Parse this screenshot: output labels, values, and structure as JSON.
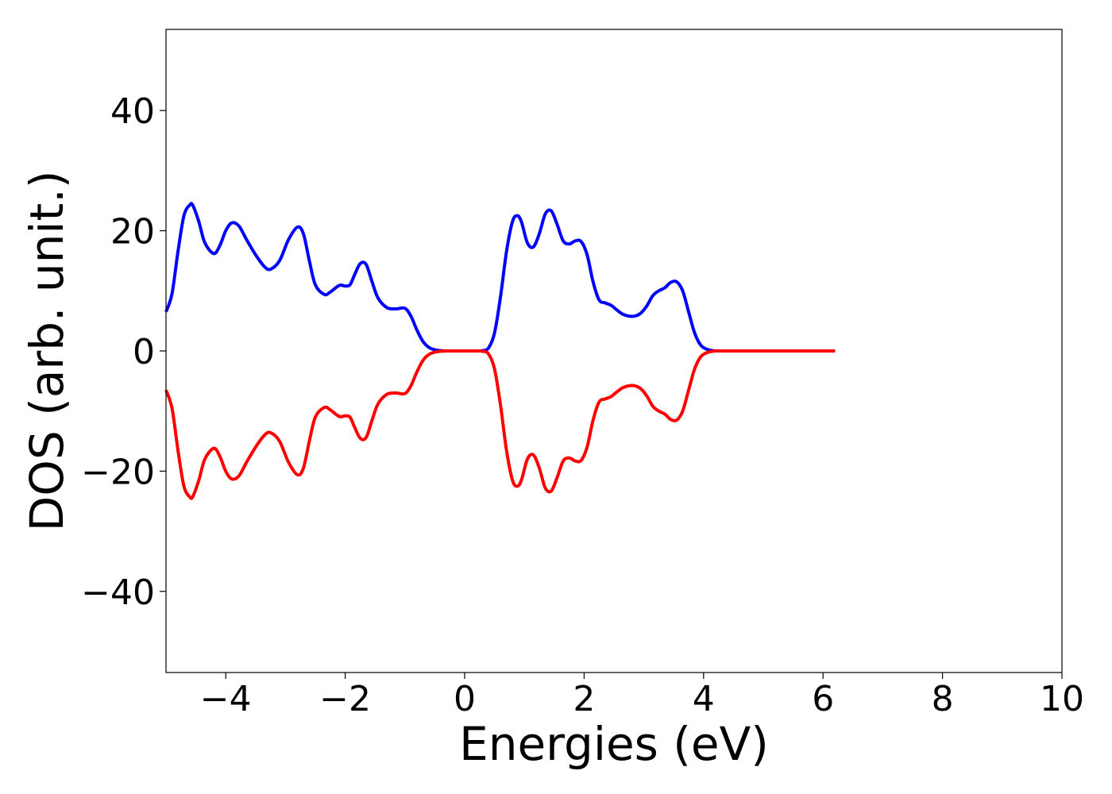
{
  "chart_data": {
    "type": "line",
    "title": "",
    "xlabel": "Energies (eV)",
    "ylabel": "DOS (arb. unit.)",
    "xlim": [
      -5,
      10
    ],
    "ylim": [
      -53.5,
      53.5
    ],
    "xticks": [
      -4,
      -2,
      0,
      2,
      4,
      6,
      8,
      10
    ],
    "yticks": [
      -40,
      -20,
      0,
      20,
      40
    ],
    "xtick_labels": [
      "−4",
      "−2",
      "0",
      "2",
      "4",
      "6",
      "8",
      "10"
    ],
    "ytick_labels": [
      "−40",
      "−20",
      "0",
      "20",
      "40"
    ],
    "grid": false,
    "legend": "none",
    "series": [
      {
        "color": "#0000ff",
        "x": [
          -5.0,
          -4.9,
          -4.8,
          -4.7,
          -4.6,
          -4.55,
          -4.45,
          -4.35,
          -4.2,
          -4.1,
          -4.0,
          -3.9,
          -3.78,
          -3.65,
          -3.5,
          -3.35,
          -3.25,
          -3.1,
          -2.95,
          -2.8,
          -2.7,
          -2.6,
          -2.5,
          -2.35,
          -2.25,
          -2.1,
          -2.0,
          -1.92,
          -1.85,
          -1.75,
          -1.65,
          -1.55,
          -1.45,
          -1.3,
          -1.15,
          -1.0,
          -0.9,
          -0.8,
          -0.7,
          -0.6,
          -0.5,
          -0.4,
          -0.3,
          -0.2,
          0.0,
          0.2,
          0.3,
          0.4,
          0.5,
          0.6,
          0.7,
          0.8,
          0.88,
          0.95,
          1.05,
          1.15,
          1.25,
          1.35,
          1.45,
          1.55,
          1.65,
          1.75,
          1.85,
          1.95,
          2.05,
          2.15,
          2.25,
          2.35,
          2.45,
          2.55,
          2.65,
          2.75,
          2.85,
          2.95,
          3.05,
          3.15,
          3.25,
          3.35,
          3.45,
          3.55,
          3.65,
          3.75,
          3.85,
          3.95,
          4.05,
          4.15,
          4.25,
          4.5,
          5.0,
          5.5,
          6.0,
          6.2
        ],
        "y": [
          6.5,
          9.5,
          16.5,
          22.5,
          24.3,
          24.2,
          21.5,
          18.0,
          16.2,
          17.5,
          20.0,
          21.3,
          20.8,
          18.5,
          16.0,
          14.0,
          13.6,
          15.0,
          18.5,
          20.6,
          19.5,
          15.0,
          11.0,
          9.4,
          9.8,
          10.9,
          10.8,
          11.0,
          12.5,
          14.5,
          14.4,
          11.5,
          8.8,
          7.2,
          7.0,
          7.1,
          5.8,
          3.5,
          1.6,
          0.6,
          0.2,
          0.05,
          0.0,
          0.0,
          0.0,
          0.0,
          0.05,
          0.5,
          3.0,
          9.0,
          16.5,
          21.5,
          22.5,
          21.5,
          18.0,
          17.3,
          19.5,
          22.8,
          23.3,
          21.0,
          18.3,
          17.8,
          18.3,
          18.2,
          16.0,
          11.5,
          8.5,
          8.0,
          7.6,
          6.8,
          6.1,
          5.8,
          5.8,
          6.3,
          7.5,
          9.2,
          10.0,
          10.5,
          11.4,
          11.5,
          10.0,
          6.5,
          3.0,
          1.0,
          0.3,
          0.05,
          0.0,
          0.0,
          0.0,
          0.0,
          0.0,
          0.0
        ]
      },
      {
        "color": "#ff0000",
        "x": [
          -5.0,
          -4.9,
          -4.8,
          -4.7,
          -4.6,
          -4.55,
          -4.45,
          -4.35,
          -4.2,
          -4.1,
          -4.0,
          -3.9,
          -3.78,
          -3.65,
          -3.5,
          -3.35,
          -3.25,
          -3.1,
          -2.95,
          -2.8,
          -2.7,
          -2.6,
          -2.5,
          -2.35,
          -2.25,
          -2.1,
          -2.0,
          -1.92,
          -1.85,
          -1.75,
          -1.65,
          -1.55,
          -1.45,
          -1.3,
          -1.15,
          -1.0,
          -0.9,
          -0.8,
          -0.7,
          -0.6,
          -0.5,
          -0.4,
          -0.3,
          -0.2,
          0.0,
          0.2,
          0.3,
          0.4,
          0.5,
          0.6,
          0.7,
          0.8,
          0.88,
          0.95,
          1.05,
          1.15,
          1.25,
          1.35,
          1.45,
          1.55,
          1.65,
          1.75,
          1.85,
          1.95,
          2.05,
          2.15,
          2.25,
          2.35,
          2.45,
          2.55,
          2.65,
          2.75,
          2.85,
          2.95,
          3.05,
          3.15,
          3.25,
          3.35,
          3.45,
          3.55,
          3.65,
          3.75,
          3.85,
          3.95,
          4.05,
          4.15,
          4.25,
          4.5,
          5.0,
          5.5,
          6.0,
          6.2
        ],
        "y": [
          -6.5,
          -9.5,
          -16.5,
          -22.5,
          -24.3,
          -24.2,
          -21.5,
          -18.0,
          -16.2,
          -17.5,
          -20.0,
          -21.3,
          -20.8,
          -18.5,
          -16.0,
          -14.0,
          -13.6,
          -15.0,
          -18.5,
          -20.6,
          -19.5,
          -15.0,
          -11.0,
          -9.4,
          -9.8,
          -10.9,
          -10.8,
          -11.0,
          -12.5,
          -14.5,
          -14.4,
          -11.5,
          -8.8,
          -7.2,
          -7.0,
          -7.1,
          -5.8,
          -3.5,
          -1.6,
          -0.6,
          -0.2,
          -0.05,
          0.0,
          0.0,
          0.0,
          0.0,
          -0.05,
          -0.5,
          -3.0,
          -9.0,
          -16.5,
          -21.5,
          -22.5,
          -21.5,
          -18.0,
          -17.3,
          -19.5,
          -22.8,
          -23.3,
          -21.0,
          -18.3,
          -17.8,
          -18.3,
          -18.2,
          -16.0,
          -11.5,
          -8.5,
          -8.0,
          -7.6,
          -6.8,
          -6.1,
          -5.8,
          -5.8,
          -6.3,
          -7.5,
          -9.2,
          -10.0,
          -10.5,
          -11.4,
          -11.5,
          -10.0,
          -6.5,
          -3.0,
          -1.0,
          -0.3,
          -0.05,
          0.0,
          0.0,
          0.0,
          0.0,
          0.0,
          0.0
        ]
      }
    ]
  }
}
